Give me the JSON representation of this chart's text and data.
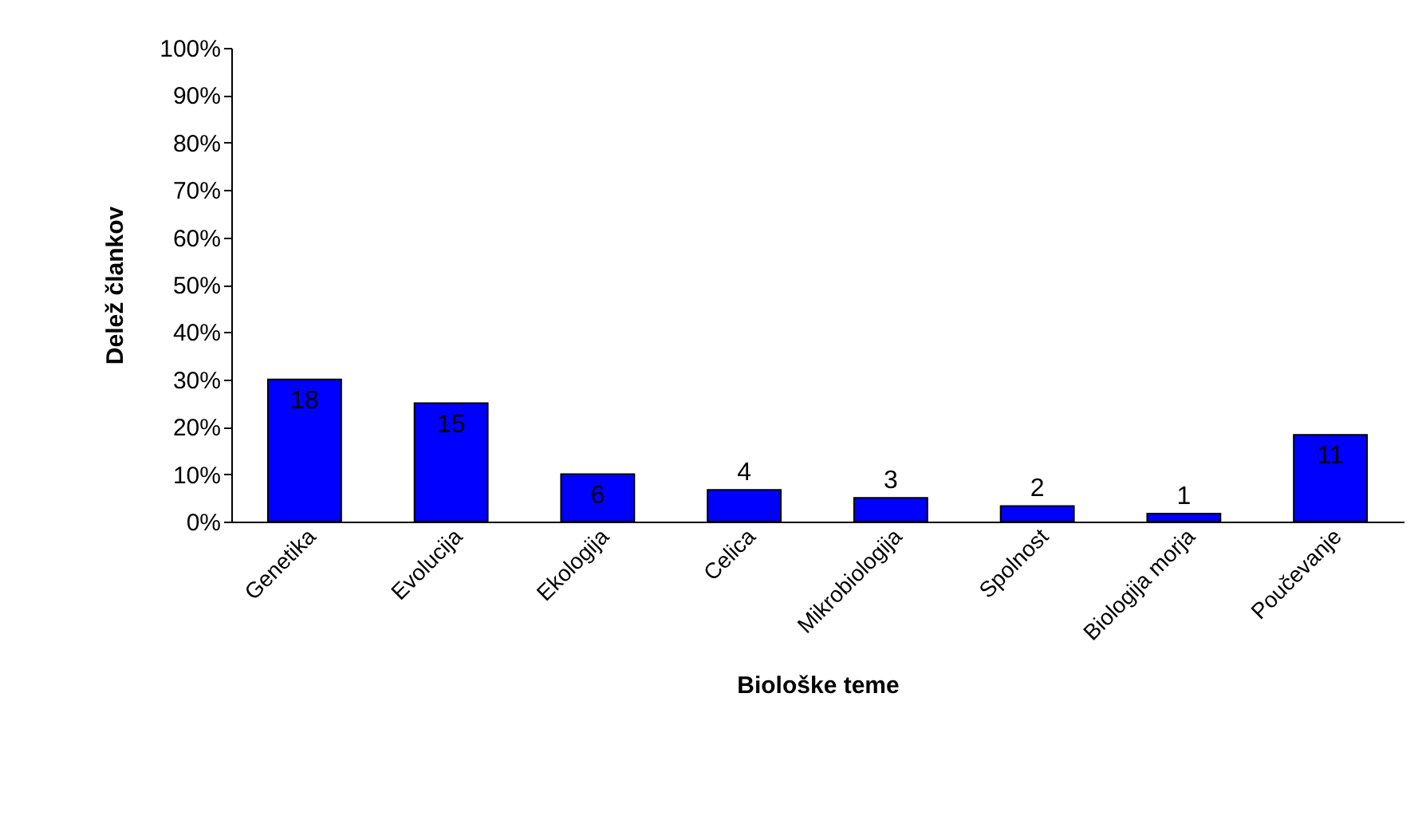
{
  "chart_data": {
    "type": "bar",
    "xlabel": "Biološke teme",
    "ylabel": "Delež člankov",
    "categories": [
      "Genetika",
      "Evolucija",
      "Ekologija",
      "Celica",
      "Mikrobiologija",
      "Spolnost",
      "Biologija morja",
      "Poučevanje"
    ],
    "values": [
      30,
      25,
      10,
      6.7,
      5,
      3.3,
      1.7,
      18.3
    ],
    "annotations": [
      {
        "text": "18",
        "x": "Genetika",
        "y": 30
      },
      {
        "text": "15",
        "x": "Evolucija",
        "y": 25
      },
      {
        "text": "6",
        "x": "Ekologija",
        "y": 10
      },
      {
        "text": "4",
        "x": "Celica",
        "y": 6.7
      },
      {
        "text": "3",
        "x": "Mikrobiologija",
        "y": 5
      },
      {
        "text": "2",
        "x": "Spolnost",
        "y": 3.3
      },
      {
        "text": "1",
        "x": "Biologija morja",
        "y": 1.7
      },
      {
        "text": "11",
        "x": "Poučevanje",
        "y": 18.3
      }
    ],
    "color": "#0000ff",
    "ylim": [
      0,
      100
    ],
    "yticks": [
      {
        "value": 0,
        "label": "0%"
      },
      {
        "value": 10,
        "label": "10%"
      },
      {
        "value": 20,
        "label": "20%"
      },
      {
        "value": 30,
        "label": "30%"
      },
      {
        "value": 40,
        "label": "40%"
      },
      {
        "value": 50,
        "label": "50%"
      },
      {
        "value": 60,
        "label": "60%"
      },
      {
        "value": 70,
        "label": "70%"
      },
      {
        "value": 80,
        "label": "80%"
      },
      {
        "value": 90,
        "label": "90%"
      },
      {
        "value": 100,
        "label": "100%"
      }
    ],
    "grid": false
  }
}
